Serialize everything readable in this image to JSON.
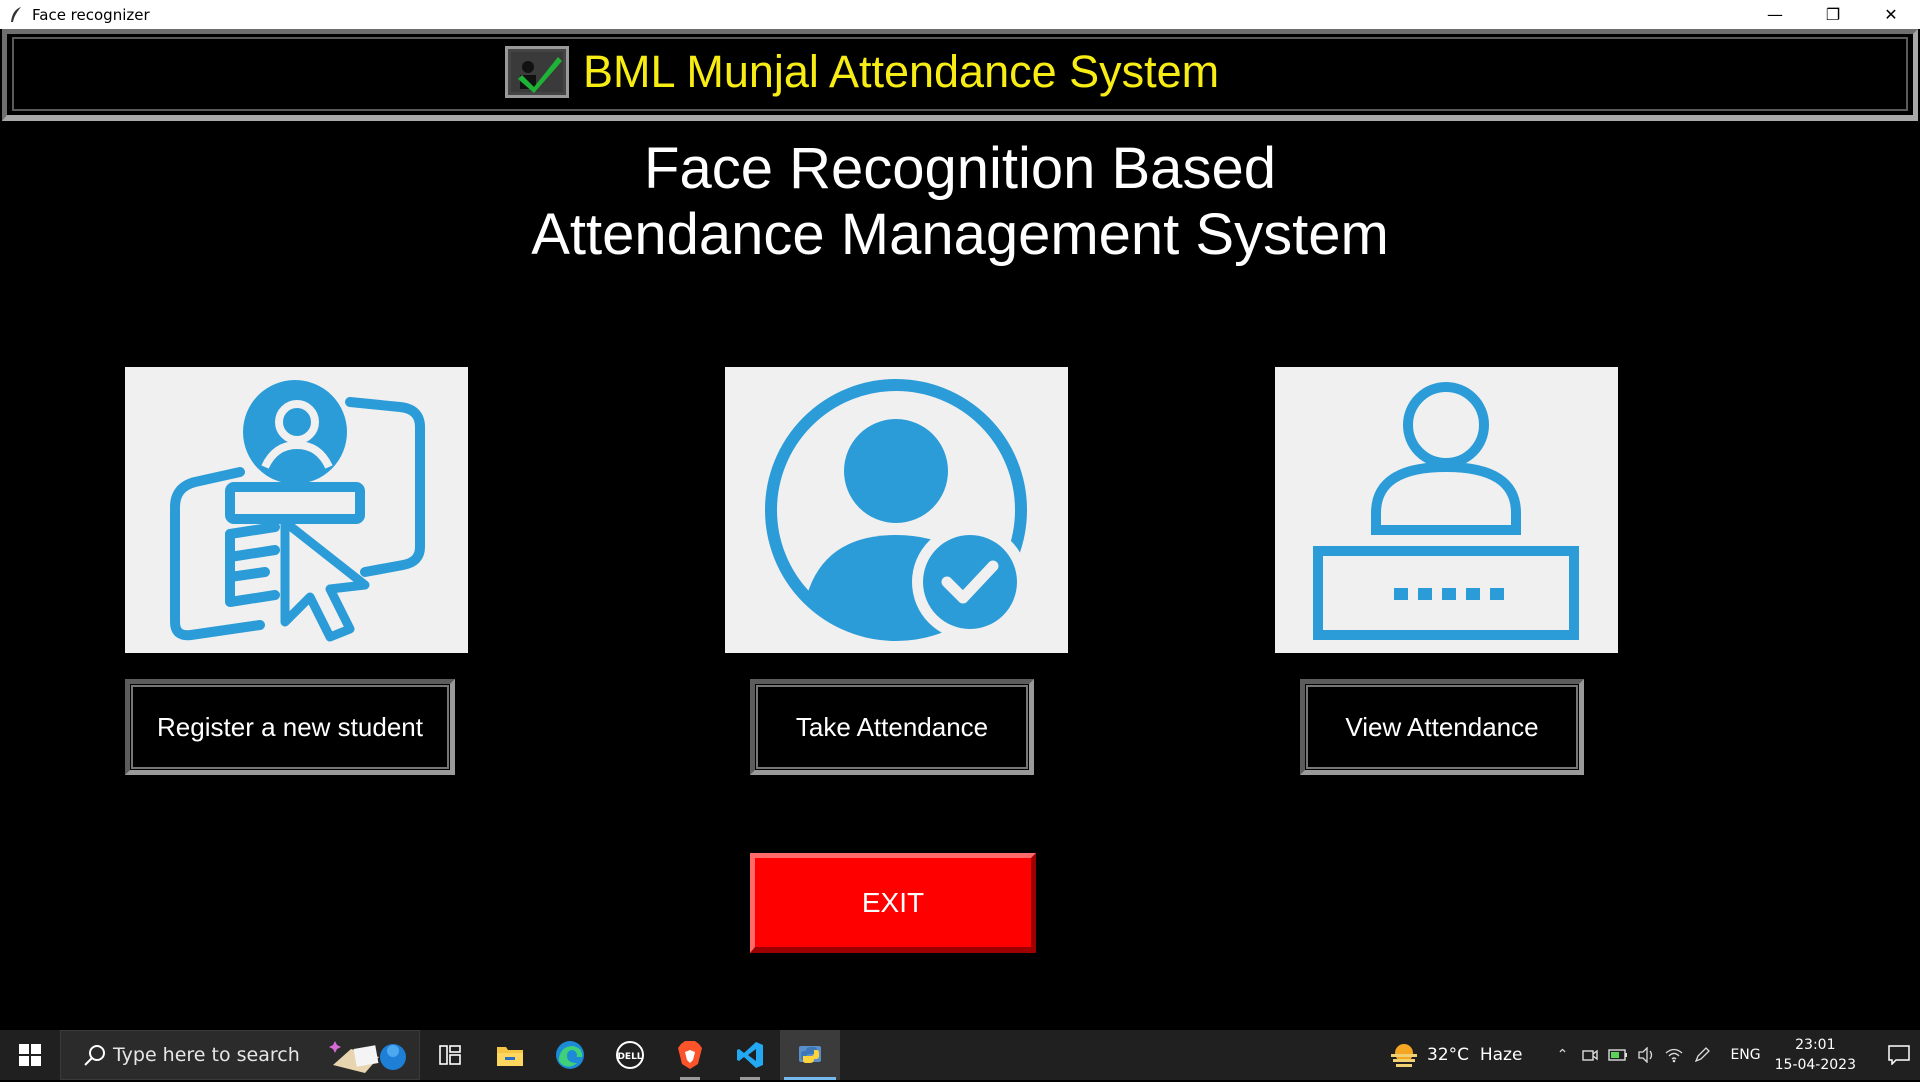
{
  "window": {
    "title": "Face recognizer",
    "controls": [
      "—",
      "❐",
      "✕"
    ]
  },
  "banner": {
    "title": "BML Munjal Attendance System"
  },
  "heading": {
    "line1": "Face Recognition Based",
    "line2": "Attendance Management System"
  },
  "actions": {
    "register_label": "Register a new student",
    "take_label": "Take Attendance",
    "view_label": "View Attendance",
    "exit_label": "EXIT"
  },
  "icons": {
    "register": "register-student-icon",
    "take": "take-attendance-icon",
    "view": "view-attendance-icon"
  },
  "colors": {
    "accent": "#2b9cd8",
    "banner_text": "#f7ec13",
    "exit": "#fe0000"
  },
  "taskbar": {
    "search_placeholder": "Type here to search",
    "weather": "32°C  Haze",
    "language": "ENG",
    "time": "23:01",
    "date": "15-04-2023"
  }
}
